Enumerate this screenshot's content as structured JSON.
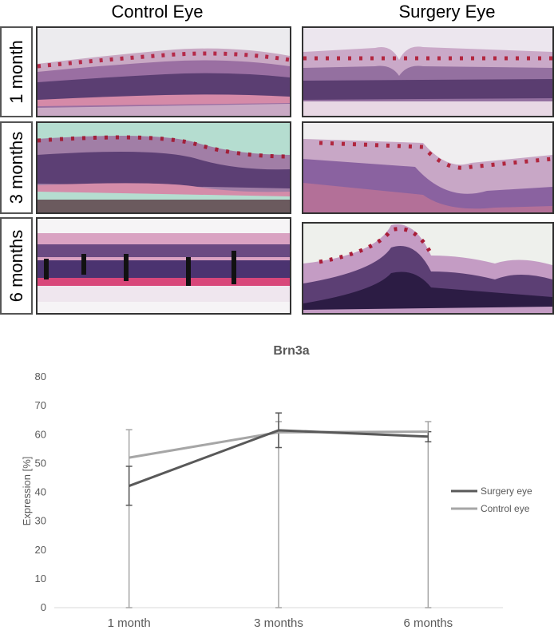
{
  "figure": {
    "columns": [
      "Control Eye",
      "Surgery Eye"
    ],
    "rows": [
      "1 month",
      "3 months",
      "6 months"
    ]
  },
  "chart_data": {
    "type": "line",
    "title": "Brn3a",
    "ylabel": "Expression [%]",
    "xlabel": "",
    "categories": [
      "1 month",
      "3 months",
      "6 months"
    ],
    "ylim": [
      0,
      80
    ],
    "yticks": [
      0,
      10,
      20,
      30,
      40,
      50,
      60,
      70,
      80
    ],
    "grid": false,
    "legend_position": "right",
    "series": [
      {
        "name": "Surgery eye",
        "color": "#595959",
        "values": [
          42.2,
          61.5,
          59.3
        ],
        "error_low": [
          35.5,
          55.5,
          57.5
        ],
        "error_high": [
          49.0,
          67.5,
          61.0
        ]
      },
      {
        "name": "Control eye",
        "color": "#a6a6a6",
        "values": [
          52.0,
          60.8,
          61.0
        ],
        "error_low": [
          0,
          0,
          0
        ],
        "error_high": [
          61.7,
          64.5,
          64.5
        ]
      }
    ]
  }
}
